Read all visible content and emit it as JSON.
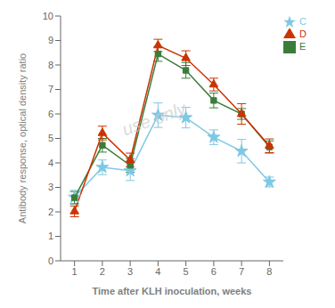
{
  "chart_data": {
    "type": "line",
    "x": [
      1,
      2,
      3,
      4,
      5,
      6,
      7,
      8
    ],
    "series": [
      {
        "name": "C",
        "color": "#7ec8e3",
        "marker": "star",
        "values": [
          2.6,
          3.82,
          3.68,
          5.95,
          5.85,
          5.05,
          4.48,
          3.22
        ],
        "yerr": [
          0.28,
          0.3,
          0.4,
          0.5,
          0.42,
          0.3,
          0.48,
          0.2
        ]
      },
      {
        "name": "E",
        "color": "#3a7d3a",
        "marker": "square",
        "values": [
          2.58,
          4.72,
          3.9,
          8.45,
          7.78,
          6.55,
          6.0,
          4.65
        ],
        "yerr": [
          0.25,
          0.28,
          0.28,
          0.3,
          0.32,
          0.3,
          0.22,
          0.25
        ]
      },
      {
        "name": "D",
        "color": "#cc3300",
        "marker": "triangle",
        "values": [
          2.02,
          5.22,
          4.12,
          8.8,
          8.28,
          7.2,
          6.0,
          4.7
        ],
        "yerr": [
          0.22,
          0.28,
          0.28,
          0.25,
          0.3,
          0.26,
          0.42,
          0.28
        ]
      }
    ],
    "xlabel": "Time after KLH inoculation, weeks",
    "ylabel": "Antibody response, optical density ratio",
    "xlim": [
      0.5,
      8.5
    ],
    "ylim": [
      0,
      10
    ],
    "xticks": [
      1,
      2,
      3,
      4,
      5,
      6,
      7,
      8
    ],
    "yticks": [
      0,
      1,
      2,
      3,
      4,
      5,
      6,
      7,
      8,
      9,
      10
    ],
    "legend": "upper right",
    "grid": false,
    "annotations": [
      "use only"
    ]
  }
}
